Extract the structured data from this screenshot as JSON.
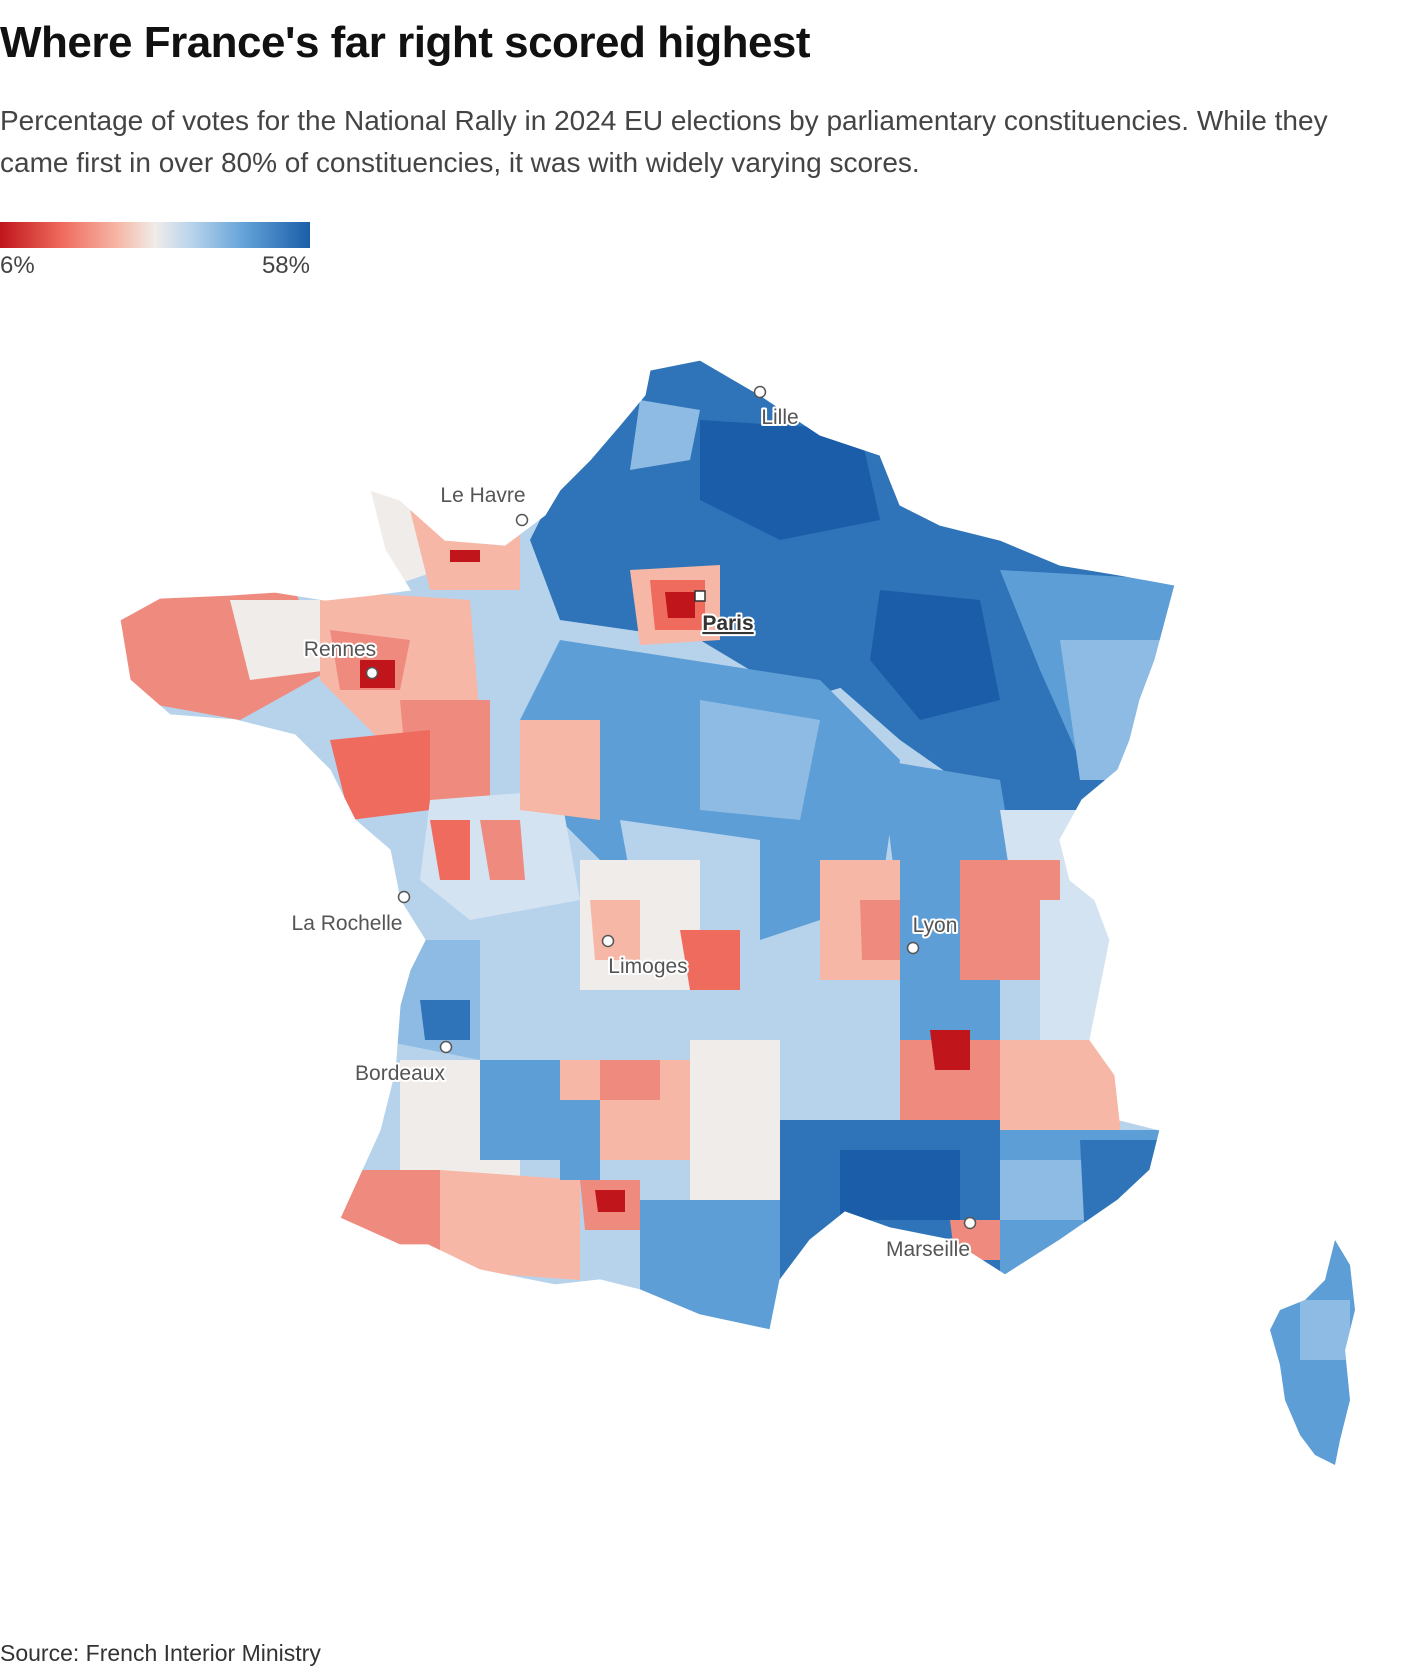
{
  "title": "Where France's far right scored highest",
  "subtitle": "Percentage of votes for the National Rally in 2024 EU elections by parliamentary constituencies. While they came first in over 80% of constituencies, it was with widely varying scores.",
  "legend": {
    "min_label": "6%",
    "max_label": "58%",
    "min_value": 6,
    "max_value": 58,
    "colors": [
      "#c0151b",
      "#ef6b5e",
      "#f6b7a6",
      "#f0ece9",
      "#b7d3ec",
      "#5e9ed6",
      "#1b5da8"
    ]
  },
  "cities": [
    {
      "name": "Lille",
      "capital": false
    },
    {
      "name": "Le Havre",
      "capital": false
    },
    {
      "name": "Paris",
      "capital": true
    },
    {
      "name": "Rennes",
      "capital": false
    },
    {
      "name": "La Rochelle",
      "capital": false
    },
    {
      "name": "Lyon",
      "capital": false
    },
    {
      "name": "Limoges",
      "capital": false
    },
    {
      "name": "Bordeaux",
      "capital": false
    },
    {
      "name": "Marseille",
      "capital": false
    }
  ],
  "source": "Source: French Interior Ministry"
}
